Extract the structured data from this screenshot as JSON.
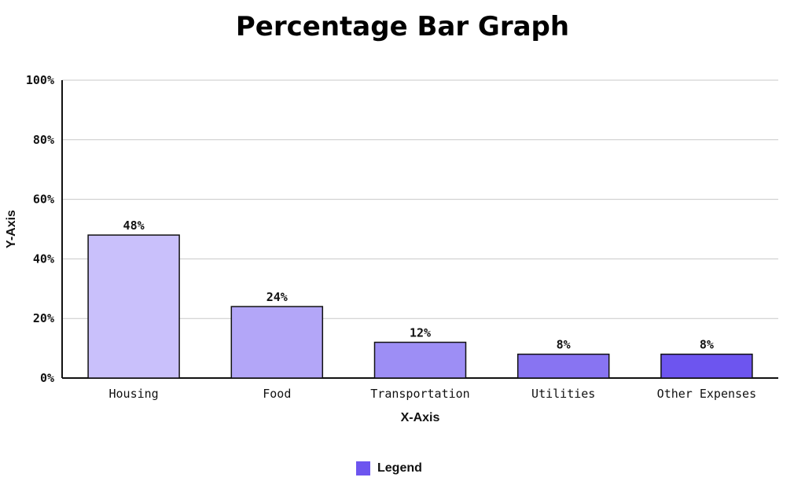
{
  "chart_data": {
    "type": "bar",
    "title": "Percentage Bar Graph",
    "xlabel": "X-Axis",
    "ylabel": "Y-Axis",
    "categories": [
      "Housing",
      "Food",
      "Transportation",
      "Utilities",
      "Other Expenses"
    ],
    "values": [
      48,
      24,
      12,
      8,
      8
    ],
    "data_labels": [
      "48%",
      "24%",
      "12%",
      "8%",
      "8%"
    ],
    "bar_colors": [
      "#c9c0fb",
      "#b3a6f8",
      "#9d8ef5",
      "#8874f2",
      "#6d55ef"
    ],
    "ylim": [
      0,
      100
    ],
    "yticks": [
      0,
      20,
      40,
      60,
      80,
      100
    ],
    "ytick_labels": [
      "0%",
      "20%",
      "40%",
      "60%",
      "80%",
      "100%"
    ],
    "grid": true,
    "legend": {
      "label": "Legend",
      "color": "#6d55ef",
      "placement": "bottom-center"
    }
  }
}
